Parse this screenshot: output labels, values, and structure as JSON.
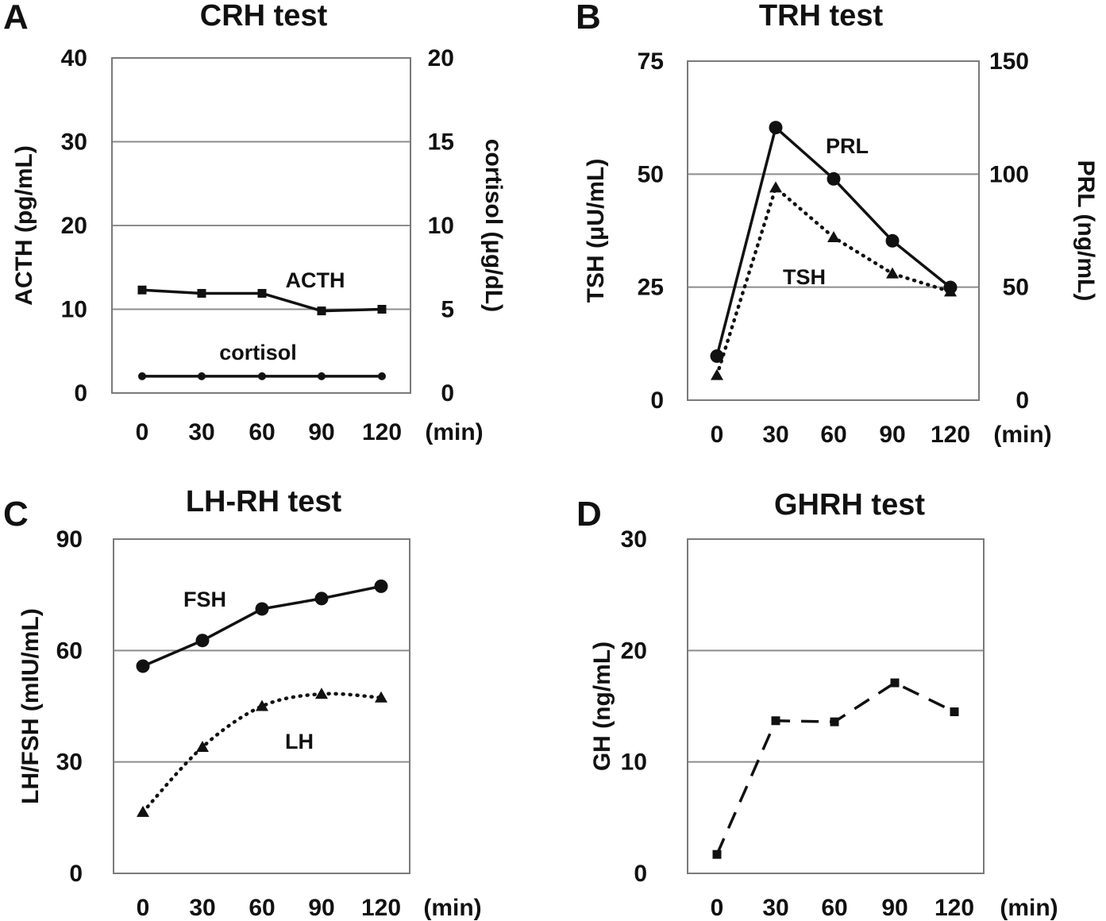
{
  "chart_data": [
    {
      "panel": "A",
      "type": "line",
      "title": "CRH test",
      "categories": [
        "0",
        "30",
        "60",
        "90",
        "120"
      ],
      "x_unit": "(min)",
      "ylabel": "ACTH (pg/mL)",
      "ylim": [
        0,
        40
      ],
      "yticks": [
        "0",
        "10",
        "20",
        "30",
        "40"
      ],
      "y2label": "cortisol (μg/dL)",
      "y2lim": [
        0,
        20
      ],
      "y2ticks": [
        "0",
        "5",
        "10",
        "15",
        "20"
      ],
      "series": [
        {
          "name": "ACTH",
          "axis": "left",
          "marker": "square",
          "style": "solid",
          "values": [
            12.3,
            11.9,
            11.9,
            9.8,
            10.0
          ]
        },
        {
          "name": "cortisol",
          "axis": "right",
          "marker": "circle-small",
          "style": "solid",
          "values": [
            1.0,
            1.0,
            1.0,
            1.0,
            1.0
          ]
        }
      ]
    },
    {
      "panel": "B",
      "type": "line",
      "title": "TRH test",
      "categories": [
        "0",
        "30",
        "60",
        "90",
        "120"
      ],
      "x_unit": "(min)",
      "ylabel": "TSH (μU/mL)",
      "ylim": [
        0,
        75
      ],
      "yticks": [
        "0",
        "25",
        "50",
        "75"
      ],
      "y2label": "PRL (ng/mL)",
      "y2lim": [
        0,
        150
      ],
      "y2ticks": [
        "0",
        "50",
        "100",
        "150"
      ],
      "series": [
        {
          "name": "PRL",
          "axis": "right",
          "marker": "circle",
          "style": "solid",
          "values": [
            19.5,
            120.6,
            97.9,
            70.5,
            49.9
          ]
        },
        {
          "name": "TSH",
          "axis": "left",
          "marker": "triangle",
          "style": "dotted",
          "values": [
            5.5,
            47.0,
            36.0,
            28.0,
            24.0
          ]
        }
      ]
    },
    {
      "panel": "C",
      "type": "line",
      "title": "LH-RH test",
      "categories": [
        "0",
        "30",
        "60",
        "90",
        "120"
      ],
      "x_unit": "(min)",
      "ylabel": "LH/FSH (mIU/mL)",
      "ylim": [
        0,
        90
      ],
      "yticks": [
        "0",
        "30",
        "60",
        "90"
      ],
      "series": [
        {
          "name": "FSH",
          "axis": "left",
          "marker": "circle",
          "style": "solid",
          "values": [
            55.8,
            62.7,
            71.2,
            74.0,
            77.3
          ]
        },
        {
          "name": "LH",
          "axis": "left",
          "marker": "triangle",
          "style": "dotted",
          "values": [
            16.5,
            34.0,
            45.0,
            48.3,
            47.3
          ]
        }
      ]
    },
    {
      "panel": "D",
      "type": "line",
      "title": "GHRH test",
      "categories": [
        "0",
        "30",
        "60",
        "90",
        "120"
      ],
      "x_unit": "(min)",
      "ylabel": "GH (ng/mL)",
      "ylim": [
        0,
        30
      ],
      "yticks": [
        "0",
        "10",
        "20",
        "30"
      ],
      "series": [
        {
          "name": "GH",
          "axis": "left",
          "marker": "square",
          "style": "dashed",
          "values": [
            1.7,
            13.7,
            13.6,
            17.1,
            14.5
          ]
        }
      ]
    }
  ]
}
